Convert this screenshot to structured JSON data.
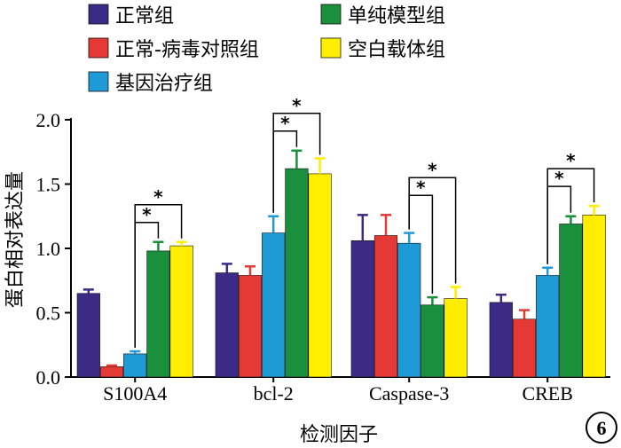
{
  "chart_data": {
    "type": "bar",
    "xlabel": "检测因子",
    "ylabel": "蛋白相对表达量",
    "ylim": [
      0,
      2.0
    ],
    "yticks": [
      "0.0",
      "0.5",
      "1.0",
      "1.5",
      "2.0"
    ],
    "grid": false,
    "legend_placement": "top",
    "categories": [
      "S100A4",
      "bcl-2",
      "Caspase-3",
      "CREB"
    ],
    "series": [
      {
        "name": "正常组",
        "color": "#3b2a86",
        "values": [
          0.65,
          0.81,
          1.06,
          0.58
        ],
        "errors": [
          0.03,
          0.07,
          0.2,
          0.06
        ]
      },
      {
        "name": "正常-病毒对照组",
        "color": "#e53935",
        "values": [
          0.08,
          0.79,
          1.1,
          0.45
        ],
        "errors": [
          0.01,
          0.07,
          0.16,
          0.07
        ]
      },
      {
        "name": "基因治疗组",
        "color": "#1e9ad6",
        "values": [
          0.18,
          1.12,
          1.04,
          0.79
        ],
        "errors": [
          0.02,
          0.13,
          0.08,
          0.06
        ]
      },
      {
        "name": "单纯模型组",
        "color": "#1a8f3c",
        "values": [
          0.98,
          1.62,
          0.56,
          1.19
        ],
        "errors": [
          0.07,
          0.14,
          0.06,
          0.06
        ]
      },
      {
        "name": "空白载体组",
        "color": "#ffee00",
        "values": [
          1.02,
          1.58,
          0.61,
          1.26
        ],
        "errors": [
          0.03,
          0.12,
          0.09,
          0.07
        ]
      }
    ],
    "significance": [
      {
        "category": "S100A4",
        "from_series": 2,
        "to_series": 3,
        "label": "*"
      },
      {
        "category": "S100A4",
        "from_series": 2,
        "to_series": 4,
        "label": "*"
      },
      {
        "category": "bcl-2",
        "from_series": 2,
        "to_series": 3,
        "label": "*"
      },
      {
        "category": "bcl-2",
        "from_series": 2,
        "to_series": 4,
        "label": "*"
      },
      {
        "category": "Caspase-3",
        "from_series": 2,
        "to_series": 3,
        "label": "*"
      },
      {
        "category": "Caspase-3",
        "from_series": 2,
        "to_series": 4,
        "label": "*"
      },
      {
        "category": "CREB",
        "from_series": 2,
        "to_series": 3,
        "label": "*"
      },
      {
        "category": "CREB",
        "from_series": 2,
        "to_series": 4,
        "label": "*"
      }
    ],
    "figure_label": "6"
  }
}
